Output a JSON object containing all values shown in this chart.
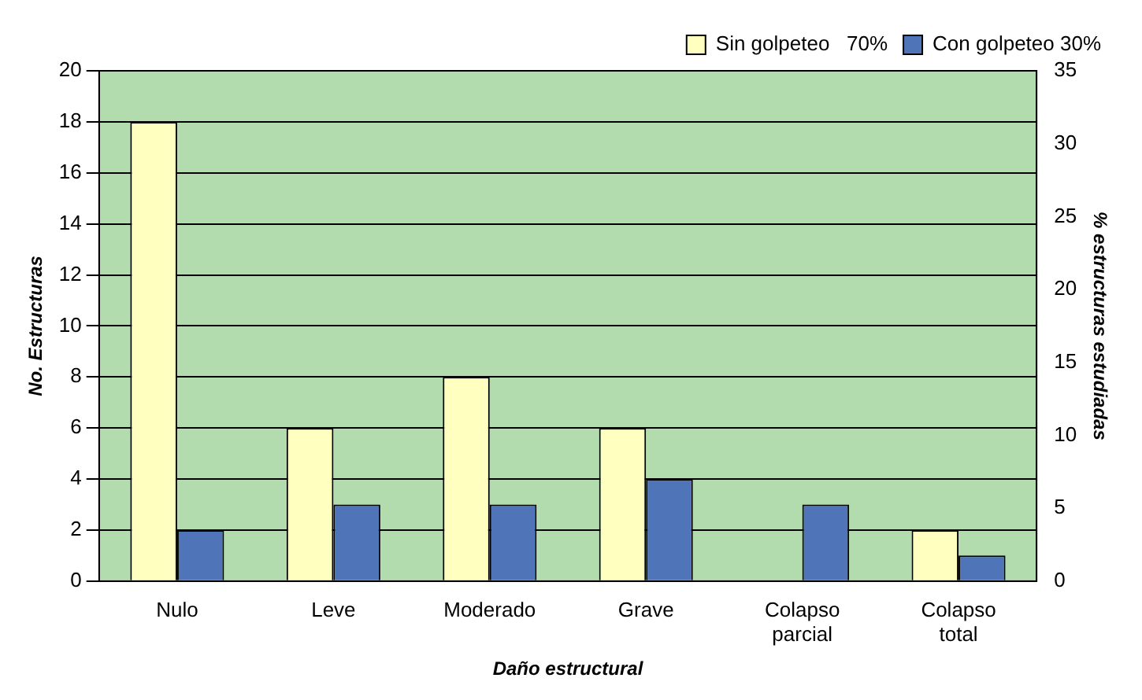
{
  "chart_data": {
    "type": "bar",
    "xlabel": "Daño estructural",
    "ylabel": "No. Estructuras",
    "y2label": "% estructuras estudiadas",
    "categories": [
      "Nulo",
      "Leve",
      "Moderado",
      "Grave",
      "Colapso parcial",
      "Colapso total"
    ],
    "series": [
      {
        "name": "Sin golpeteo   70%",
        "color": "#ffffc0",
        "values": [
          18,
          6,
          8,
          6,
          0,
          2
        ]
      },
      {
        "name": "Con golpeteo 30%",
        "color": "#4f74b8",
        "values": [
          2,
          3,
          3,
          4,
          3,
          1
        ]
      }
    ],
    "ylim": [
      0,
      20
    ],
    "yticks": [
      0,
      2,
      4,
      6,
      8,
      10,
      12,
      14,
      16,
      18,
      20
    ],
    "y2lim": [
      0,
      35
    ],
    "y2ticks": [
      0,
      5,
      10,
      15,
      20,
      25,
      30,
      35
    ],
    "grid": "y",
    "legend": "top right"
  }
}
